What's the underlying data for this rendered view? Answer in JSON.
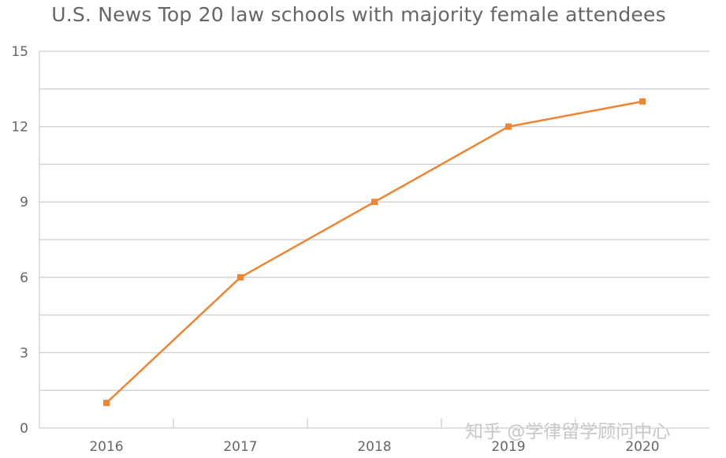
{
  "chart_data": {
    "type": "line",
    "title": "U.S. News Top 20 law schools with majority female attendees",
    "xlabel": "",
    "ylabel": "",
    "categories": [
      "2016",
      "2017",
      "2018",
      "2019",
      "2020"
    ],
    "series": [
      {
        "values": [
          1,
          6,
          9,
          12,
          13
        ]
      }
    ],
    "ylim": [
      0,
      15
    ],
    "yticks": [
      "0",
      "3",
      "6",
      "9",
      "12",
      "15"
    ],
    "grid": true,
    "legend": "none",
    "line_color": "#ef8432",
    "grid_color": "#cfcfcf",
    "text_color": "#666666"
  },
  "watermark": "知乎 @学律留学顾问中心"
}
